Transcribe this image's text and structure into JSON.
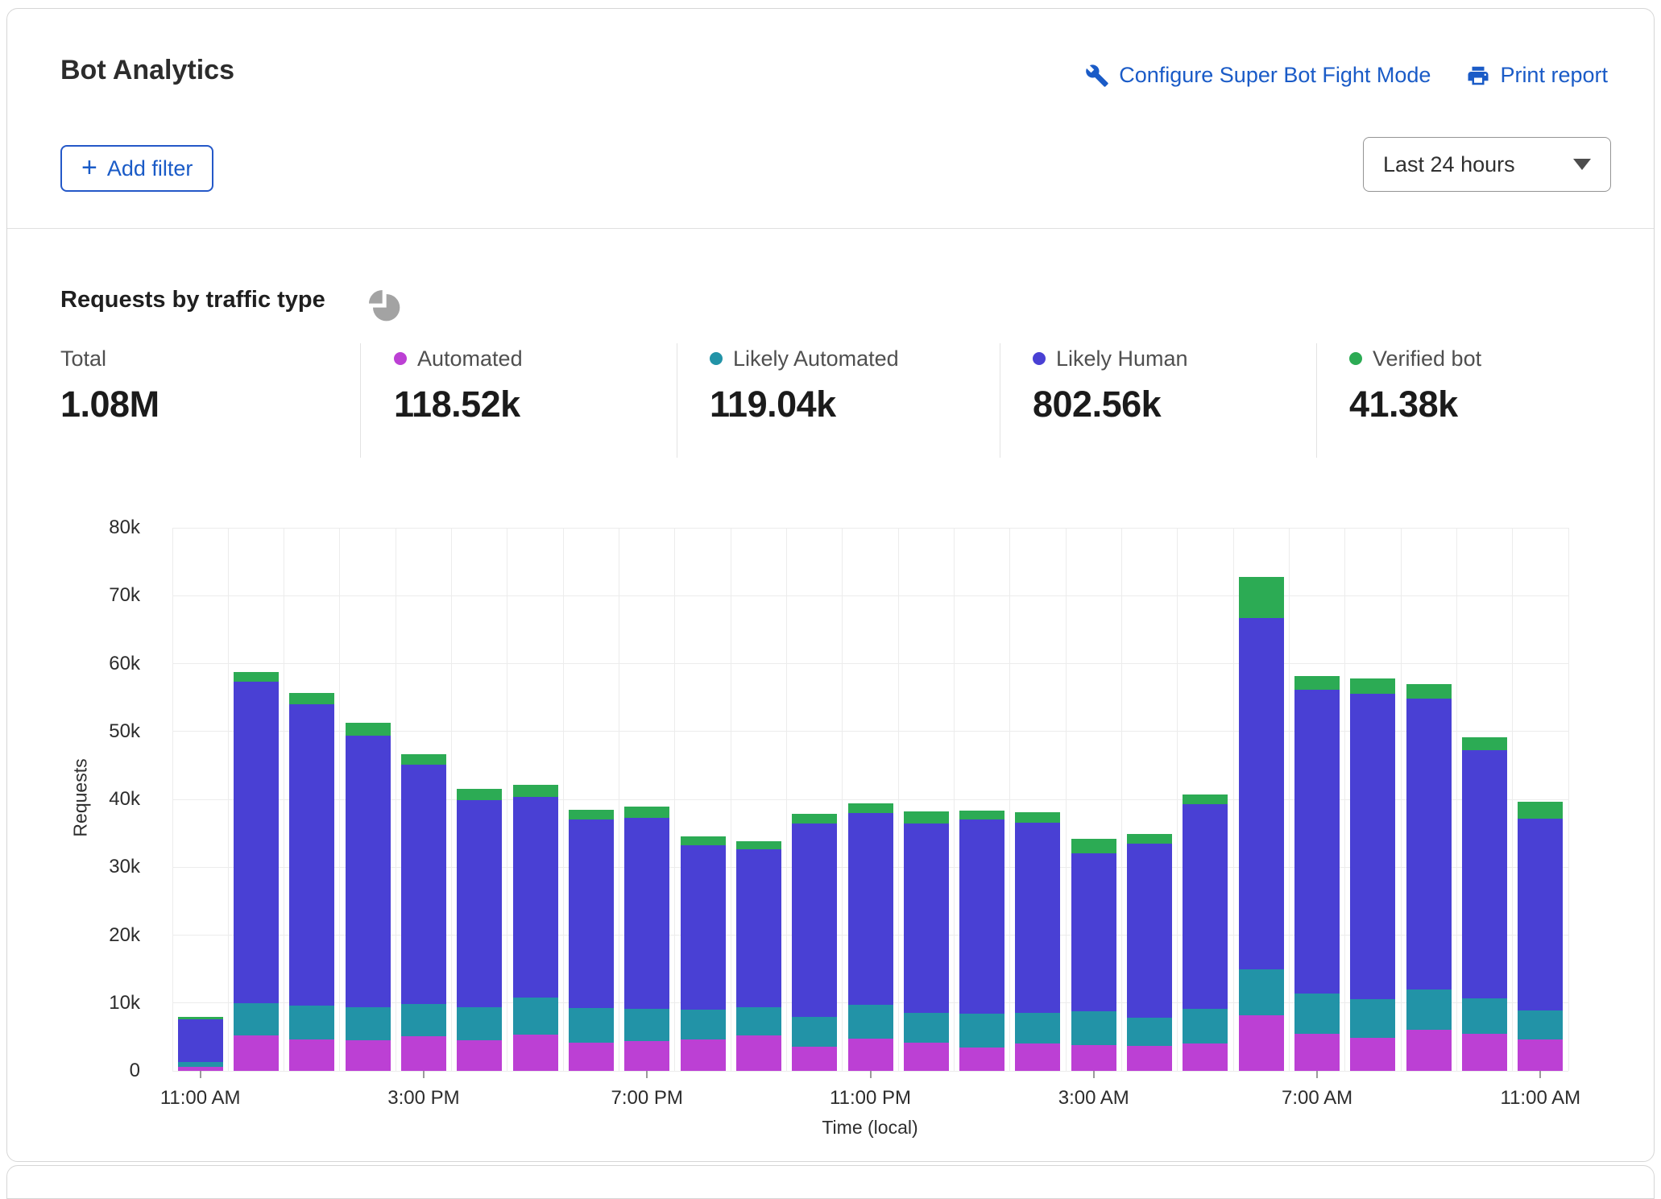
{
  "header": {
    "title": "Bot Analytics",
    "configure_label": "Configure Super Bot Fight Mode",
    "print_label": "Print report",
    "add_filter_label": "Add filter",
    "time_range_value": "Last 24 hours",
    "link_color": "#1a5bc7"
  },
  "section": {
    "title": "Requests by traffic type"
  },
  "stats": [
    {
      "label": "Total",
      "value": "1.08M"
    },
    {
      "label": "Automated",
      "value": "118.52k",
      "dot_color": "#bc40d4"
    },
    {
      "label": "Likely Automated",
      "value": "119.04k",
      "dot_color": "#2293a7"
    },
    {
      "label": "Likely Human",
      "value": "802.56k",
      "dot_color": "#4940d4"
    },
    {
      "label": "Verified bot",
      "value": "41.38k",
      "dot_color": "#2cab54"
    }
  ],
  "chart_data": {
    "type": "bar",
    "stacked": true,
    "title": "Requests by traffic type",
    "xlabel": "Time (local)",
    "ylabel": "Requests",
    "ylim": [
      0,
      80000
    ],
    "grid": true,
    "legend_position": "top-stats-row",
    "categories": [
      "11:00 AM",
      "12:00 PM",
      "1:00 PM",
      "2:00 PM",
      "3:00 PM",
      "4:00 PM",
      "5:00 PM",
      "6:00 PM",
      "7:00 PM",
      "8:00 PM",
      "9:00 PM",
      "10:00 PM",
      "11:00 PM",
      "12:00 AM",
      "1:00 AM",
      "2:00 AM",
      "3:00 AM",
      "4:00 AM",
      "5:00 AM",
      "6:00 AM",
      "7:00 AM",
      "8:00 AM",
      "9:00 AM",
      "10:00 AM",
      "11:00 AM"
    ],
    "yticks": [
      {
        "value": 0,
        "label": "0"
      },
      {
        "value": 10000,
        "label": "10k"
      },
      {
        "value": 20000,
        "label": "20k"
      },
      {
        "value": 30000,
        "label": "30k"
      },
      {
        "value": 40000,
        "label": "40k"
      },
      {
        "value": 50000,
        "label": "50k"
      },
      {
        "value": 60000,
        "label": "60k"
      },
      {
        "value": 70000,
        "label": "70k"
      },
      {
        "value": 80000,
        "label": "80k"
      }
    ],
    "xticks": [
      {
        "index": 0,
        "label": "11:00 AM"
      },
      {
        "index": 4,
        "label": "3:00 PM"
      },
      {
        "index": 8,
        "label": "7:00 PM"
      },
      {
        "index": 12,
        "label": "11:00 PM"
      },
      {
        "index": 16,
        "label": "3:00 AM"
      },
      {
        "index": 20,
        "label": "7:00 AM"
      },
      {
        "index": 24,
        "label": "11:00 AM"
      }
    ],
    "series": [
      {
        "name": "Automated",
        "color": "#bc40d4",
        "values": [
          600,
          5200,
          4600,
          4500,
          5100,
          4500,
          5400,
          4200,
          4400,
          4600,
          5200,
          3600,
          4700,
          4200,
          3500,
          4000,
          3800,
          3700,
          4000,
          8200,
          5500,
          4900,
          6100,
          5500,
          4600
        ]
      },
      {
        "name": "Likely Automated",
        "color": "#2293a7",
        "values": [
          700,
          4800,
          5000,
          4900,
          4700,
          4900,
          5400,
          5100,
          4800,
          4400,
          4200,
          4400,
          5000,
          4400,
          4900,
          4600,
          5000,
          4100,
          5200,
          6800,
          5900,
          5700,
          5900,
          5200,
          4300
        ]
      },
      {
        "name": "Likely Human",
        "color": "#4940d4",
        "values": [
          6300,
          47300,
          44400,
          40000,
          35300,
          30500,
          29500,
          27700,
          28100,
          24200,
          23200,
          28500,
          28300,
          27900,
          28600,
          28000,
          23300,
          25700,
          30100,
          51700,
          44800,
          45000,
          42800,
          36500,
          28200
        ]
      },
      {
        "name": "Verified bot",
        "color": "#2cab54",
        "values": [
          400,
          1400,
          1700,
          1900,
          1500,
          1700,
          1800,
          1500,
          1600,
          1400,
          1200,
          1400,
          1400,
          1700,
          1300,
          1500,
          2100,
          1400,
          1400,
          6100,
          2000,
          2200,
          2200,
          2000,
          2600
        ]
      }
    ]
  }
}
